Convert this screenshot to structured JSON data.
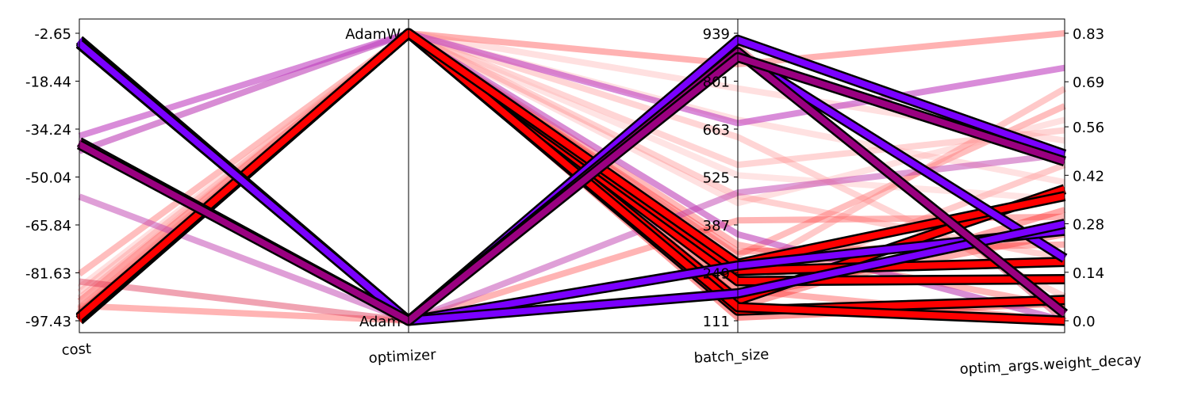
{
  "chart_data": {
    "type": "parallel_coordinates",
    "title": "",
    "axes": [
      {
        "name": "cost",
        "kind": "numeric",
        "ticks": [
          -2.65,
          -18.44,
          -34.24,
          -50.04,
          -65.84,
          -81.63,
          -97.43
        ],
        "tick_labels": [
          "-2.65",
          "-18.44",
          "-34.24",
          "-50.04",
          "-65.84",
          "-81.63",
          "-97.43"
        ],
        "range": [
          -97.43,
          -2.65
        ]
      },
      {
        "name": "optimizer",
        "kind": "categorical",
        "categories": [
          "Adam",
          "AdamW"
        ]
      },
      {
        "name": "batch_size",
        "kind": "numeric",
        "ticks": [
          939,
          801,
          663,
          525,
          387,
          249,
          111
        ],
        "tick_labels": [
          "939",
          "801",
          "663",
          "525",
          "387",
          "249",
          "111"
        ],
        "range": [
          111,
          939
        ]
      },
      {
        "name": "optim_args.weight_decay",
        "kind": "numeric",
        "ticks": [
          0.83,
          0.69,
          0.56,
          0.42,
          0.28,
          0.14,
          0.0
        ],
        "tick_labels": [
          "0.83",
          "0.69",
          "0.56",
          "0.42",
          "0.28",
          "0.14",
          "0.0"
        ],
        "range": [
          0.0,
          0.83
        ]
      }
    ],
    "colors": {
      "best": "#ff0000",
      "good": "#7a00ff",
      "mid": "#c71585",
      "outline": "#000000"
    },
    "grid": false,
    "legend": "none",
    "series": [
      {
        "cost": -94.5,
        "optimizer": "AdamW",
        "batch_size": 200,
        "weight_decay": 0.0,
        "color": "#ff0000",
        "opacity": 0.3,
        "highlight": false
      },
      {
        "cost": -82.0,
        "optimizer": "AdamW",
        "batch_size": 300,
        "weight_decay": 0.62,
        "color": "#ff4444",
        "opacity": 0.35,
        "highlight": false
      },
      {
        "cost": -92.5,
        "optimizer": "Adam",
        "batch_size": 400,
        "weight_decay": 0.3,
        "color": "#ff4444",
        "opacity": 0.4,
        "highlight": false
      },
      {
        "cost": -90.0,
        "optimizer": "AdamW",
        "batch_size": 560,
        "weight_decay": 0.55,
        "color": "#ff8888",
        "opacity": 0.35,
        "highlight": false
      },
      {
        "cost": -86.5,
        "optimizer": "AdamW",
        "batch_size": 780,
        "weight_decay": 0.52,
        "color": "#ff9999",
        "opacity": 0.3,
        "highlight": false
      },
      {
        "cost": -88.0,
        "optimizer": "AdamW",
        "batch_size": 640,
        "weight_decay": 0.07,
        "color": "#ff8888",
        "opacity": 0.35,
        "highlight": false
      },
      {
        "cost": -93.5,
        "optimizer": "AdamW",
        "batch_size": 330,
        "weight_decay": 0.04,
        "color": "#ff3333",
        "opacity": 0.35,
        "highlight": false
      },
      {
        "cost": -95.5,
        "optimizer": "AdamW",
        "batch_size": 200,
        "weight_decay": 0.45,
        "color": "#ff5555",
        "opacity": 0.3,
        "highlight": false
      },
      {
        "cost": -91.0,
        "optimizer": "AdamW",
        "batch_size": 850,
        "weight_decay": 0.83,
        "color": "#ff6666",
        "opacity": 0.5,
        "highlight": false
      },
      {
        "cost": -96.0,
        "optimizer": "AdamW",
        "batch_size": 450,
        "weight_decay": 0.58,
        "color": "#ffaaaa",
        "opacity": 0.35,
        "highlight": false
      },
      {
        "cost": -95.0,
        "optimizer": "AdamW",
        "batch_size": 530,
        "weight_decay": 0.35,
        "color": "#ffbbbb",
        "opacity": 0.4,
        "highlight": false
      },
      {
        "cost": -94.0,
        "optimizer": "AdamW",
        "batch_size": 240,
        "weight_decay": 0.67,
        "color": "#ff7777",
        "opacity": 0.4,
        "highlight": false
      },
      {
        "cost": -96.5,
        "optimizer": "AdamW",
        "batch_size": 310,
        "weight_decay": 0.22,
        "color": "#ff2222",
        "opacity": 0.35,
        "highlight": false
      },
      {
        "cost": -95.0,
        "optimizer": "AdamW",
        "batch_size": 150,
        "weight_decay": 0.32,
        "color": "#ff2222",
        "opacity": 0.4,
        "highlight": false
      },
      {
        "cost": -97.0,
        "optimizer": "AdamW",
        "batch_size": 120,
        "weight_decay": 0.05,
        "color": "#ff0000",
        "opacity": 0.4,
        "highlight": false
      },
      {
        "cost": -97.4,
        "optimizer": "AdamW",
        "batch_size": 180,
        "weight_decay": 0.25,
        "color": "#ff1111",
        "opacity": 0.35,
        "highlight": false
      },
      {
        "cost": -93.0,
        "optimizer": "AdamW",
        "batch_size": 470,
        "weight_decay": 0.18,
        "color": "#ff6666",
        "opacity": 0.3,
        "highlight": false
      },
      {
        "cost": -92.0,
        "optimizer": "AdamW",
        "batch_size": 690,
        "weight_decay": 0.4,
        "color": "#ffaaaa",
        "opacity": 0.35,
        "highlight": false
      },
      {
        "cost": -84.5,
        "optimizer": "Adam",
        "batch_size": 900,
        "weight_decay": 0.0,
        "color": "#dd3355",
        "opacity": 0.45,
        "highlight": false
      },
      {
        "cost": -41.5,
        "optimizer": "AdamW",
        "batch_size": 360,
        "weight_decay": 0.0,
        "color": "#b830b0",
        "opacity": 0.55,
        "highlight": false
      },
      {
        "cost": -36.5,
        "optimizer": "AdamW",
        "batch_size": 680,
        "weight_decay": 0.73,
        "color": "#c040c0",
        "opacity": 0.6,
        "highlight": false
      },
      {
        "cost": -56.5,
        "optimizer": "Adam",
        "batch_size": 480,
        "weight_decay": 0.48,
        "color": "#c040b0",
        "opacity": 0.5,
        "highlight": false
      },
      {
        "cost": -97.3,
        "optimizer": "AdamW",
        "batch_size": 140,
        "weight_decay": 0.06,
        "color": "#ff0000",
        "opacity": 1.0,
        "highlight": true
      },
      {
        "cost": -97.2,
        "optimizer": "AdamW",
        "batch_size": 170,
        "weight_decay": 0.38,
        "color": "#ff0000",
        "opacity": 1.0,
        "highlight": true
      },
      {
        "cost": -96.8,
        "optimizer": "AdamW",
        "batch_size": 225,
        "weight_decay": 0.12,
        "color": "#ff0000",
        "opacity": 1.0,
        "highlight": true
      },
      {
        "cost": -96.6,
        "optimizer": "AdamW",
        "batch_size": 255,
        "weight_decay": 0.17,
        "color": "#ff0000",
        "opacity": 1.0,
        "highlight": true
      },
      {
        "cost": -96.4,
        "optimizer": "AdamW",
        "batch_size": 150,
        "weight_decay": 0.0,
        "color": "#ff0000",
        "opacity": 1.0,
        "highlight": true
      },
      {
        "cost": -96.2,
        "optimizer": "AdamW",
        "batch_size": 275,
        "weight_decay": 0.36,
        "color": "#ff0000",
        "opacity": 1.0,
        "highlight": true
      },
      {
        "cost": -4.9,
        "optimizer": "Adam",
        "batch_size": 880,
        "weight_decay": 0.18,
        "color": "#7a00ff",
        "opacity": 1.0,
        "highlight": true
      },
      {
        "cost": -6.2,
        "optimizer": "Adam",
        "batch_size": 270,
        "weight_decay": 0.26,
        "color": "#7a00ff",
        "opacity": 1.0,
        "highlight": true
      },
      {
        "cost": -5.4,
        "optimizer": "Adam",
        "batch_size": 920,
        "weight_decay": 0.48,
        "color": "#7a00ff",
        "opacity": 1.0,
        "highlight": true
      },
      {
        "cost": -6.0,
        "optimizer": "Adam",
        "batch_size": 190,
        "weight_decay": 0.28,
        "color": "#7a00ff",
        "opacity": 1.0,
        "highlight": true
      },
      {
        "cost": -38.5,
        "optimizer": "Adam",
        "batch_size": 885,
        "weight_decay": 0.02,
        "color": "#9a0080",
        "opacity": 1.0,
        "highlight": true
      },
      {
        "cost": -39.3,
        "optimizer": "Adam",
        "batch_size": 870,
        "weight_decay": 0.46,
        "color": "#9a0080",
        "opacity": 1.0,
        "highlight": true
      }
    ]
  }
}
